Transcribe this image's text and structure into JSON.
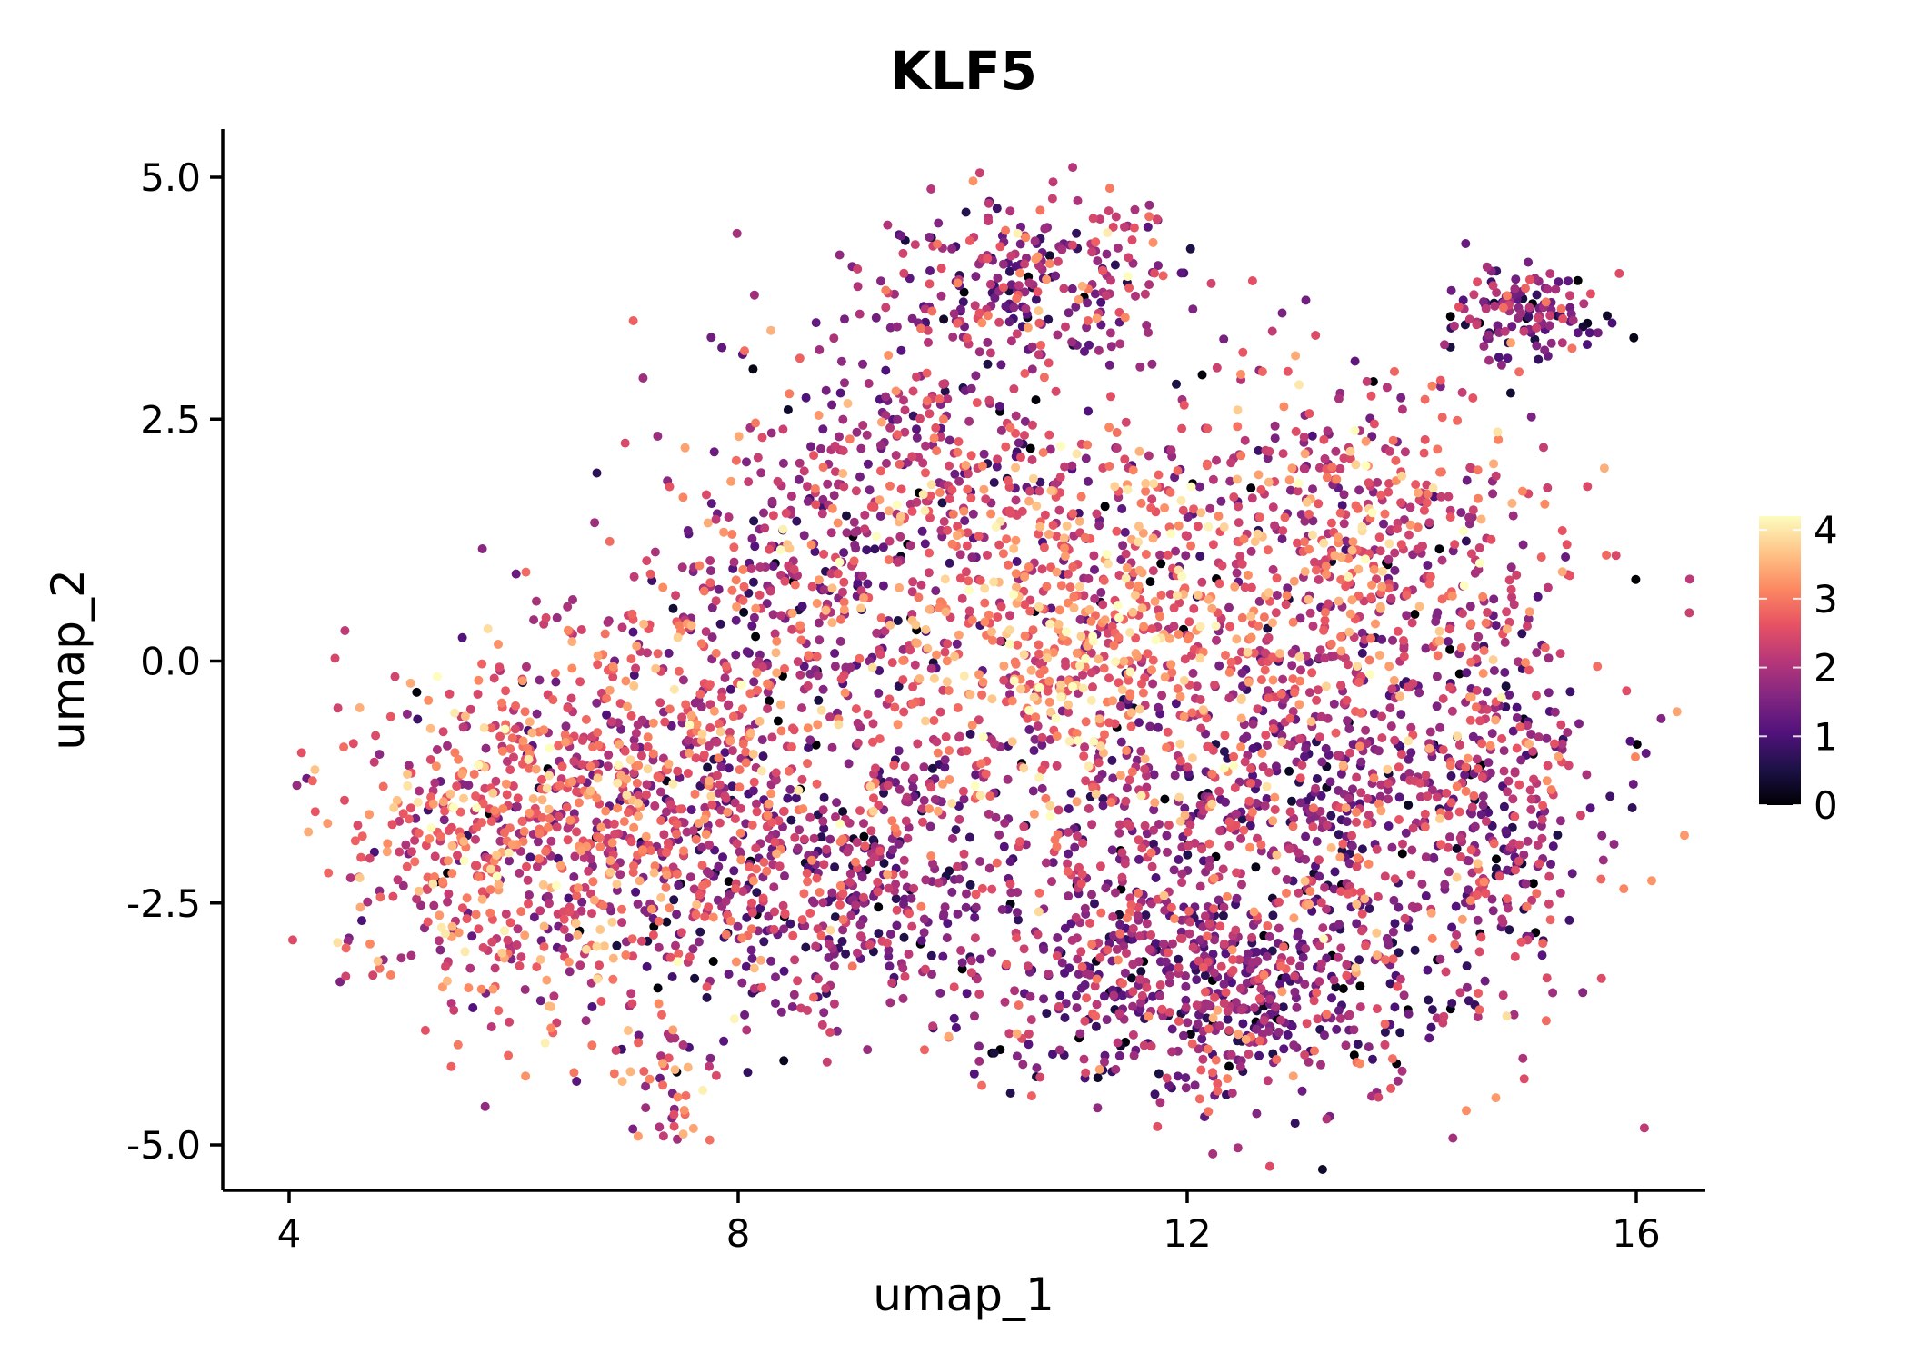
{
  "chart_data": {
    "type": "scatter",
    "title": "KLF5",
    "xlabel": "umap_1",
    "ylabel": "umap_2",
    "xlim": [
      3.4,
      16.6
    ],
    "ylim": [
      -5.5,
      5.5
    ],
    "x_ticks": [
      {
        "value": 4,
        "label": "4"
      },
      {
        "value": 8,
        "label": "8"
      },
      {
        "value": 12,
        "label": "12"
      },
      {
        "value": 16,
        "label": "16"
      }
    ],
    "y_ticks": [
      {
        "value": 5.0,
        "label": "5.0"
      },
      {
        "value": 2.5,
        "label": "2.5"
      },
      {
        "value": 0.0,
        "label": "0.0"
      },
      {
        "value": -2.5,
        "label": "-2.5"
      },
      {
        "value": -5.0,
        "label": "-5.0"
      }
    ],
    "grid": false,
    "color_scale": {
      "name": "magma",
      "min": 0,
      "max": 4.2,
      "ticks": [
        {
          "value": 0,
          "label": "0"
        },
        {
          "value": 1,
          "label": "1"
        },
        {
          "value": 2,
          "label": "2"
        },
        {
          "value": 3,
          "label": "3"
        },
        {
          "value": 4,
          "label": "4"
        }
      ],
      "stops": [
        "#000004",
        "#1d1147",
        "#51127c",
        "#822681",
        "#b73779",
        "#e75263",
        "#fc8961",
        "#fec488",
        "#fcfdbf"
      ],
      "legend_position": "right"
    },
    "clusters": [
      {
        "cx": 10.6,
        "cy": 3.9,
        "sx": 0.75,
        "sy": 0.45,
        "n": 280,
        "mean": 1.8
      },
      {
        "cx": 9.6,
        "cy": 2.0,
        "sx": 1.1,
        "sy": 0.7,
        "n": 320,
        "mean": 2.0
      },
      {
        "cx": 10.9,
        "cy": 0.3,
        "sx": 0.95,
        "sy": 1.0,
        "n": 650,
        "mean": 2.9
      },
      {
        "cx": 13.5,
        "cy": 1.3,
        "sx": 0.9,
        "sy": 0.8,
        "n": 500,
        "mean": 2.5
      },
      {
        "cx": 13.0,
        "cy": -1.5,
        "sx": 1.2,
        "sy": 1.1,
        "n": 900,
        "mean": 1.9
      },
      {
        "cx": 12.1,
        "cy": -3.4,
        "sx": 1.0,
        "sy": 0.6,
        "n": 560,
        "mean": 1.6
      },
      {
        "cx": 14.8,
        "cy": -1.6,
        "sx": 0.4,
        "sy": 1.0,
        "n": 220,
        "mean": 1.8
      },
      {
        "cx": 6.2,
        "cy": -1.9,
        "sx": 0.85,
        "sy": 0.9,
        "n": 700,
        "mean": 2.6
      },
      {
        "cx": 7.5,
        "cy": -0.6,
        "sx": 0.75,
        "sy": 0.8,
        "n": 320,
        "mean": 2.4
      },
      {
        "cx": 8.8,
        "cy": -2.2,
        "sx": 1.0,
        "sy": 0.8,
        "n": 600,
        "mean": 1.7
      },
      {
        "cx": 8.6,
        "cy": 0.7,
        "sx": 0.6,
        "sy": 0.6,
        "n": 200,
        "mean": 1.9
      },
      {
        "cx": 7.35,
        "cy": -4.3,
        "sx": 0.25,
        "sy": 0.3,
        "n": 45,
        "mean": 2.5
      },
      {
        "cx": 15.0,
        "cy": 3.6,
        "sx": 0.35,
        "sy": 0.25,
        "n": 130,
        "mean": 1.5
      }
    ]
  }
}
